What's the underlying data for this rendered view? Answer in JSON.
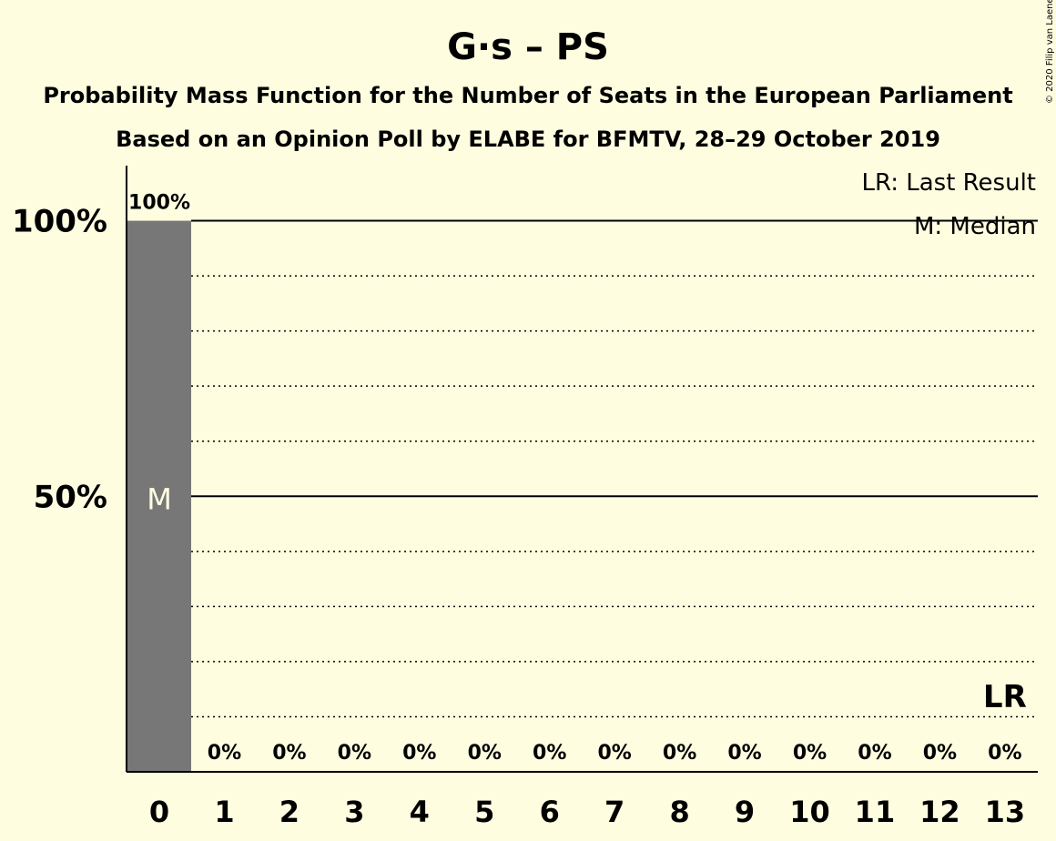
{
  "chart_data": {
    "type": "bar",
    "title": "G·s – PS",
    "subtitle": "Probability Mass Function for the Number of Seats in the European Parliament",
    "subtitle2": "Based on an Opinion Poll by ELABE for BFMTV, 28–29 October 2019",
    "copyright": "© 2020 Filip van Laenen",
    "categories": [
      "0",
      "1",
      "2",
      "3",
      "4",
      "5",
      "6",
      "7",
      "8",
      "9",
      "10",
      "11",
      "12",
      "13"
    ],
    "values": [
      100,
      0,
      0,
      0,
      0,
      0,
      0,
      0,
      0,
      0,
      0,
      0,
      0,
      0
    ],
    "value_labels": [
      "100%",
      "0%",
      "0%",
      "0%",
      "0%",
      "0%",
      "0%",
      "0%",
      "0%",
      "0%",
      "0%",
      "0%",
      "0%",
      "0%"
    ],
    "ylim": [
      0,
      110
    ],
    "y_ticks": [
      {
        "value": 100,
        "label": "100%"
      },
      {
        "value": 50,
        "label": "50%"
      }
    ],
    "y_dotted_grid": [
      10,
      20,
      30,
      40,
      60,
      70,
      80,
      90
    ],
    "median_seat": 0,
    "median_mark": "M",
    "last_result_seat": 13,
    "last_result_mark": "LR",
    "legend": {
      "placement": "top-right",
      "entries": [
        "LR: Last Result",
        "M: Median"
      ]
    },
    "colors": {
      "background": "#FFFDE0",
      "bar": "#777777",
      "axis": "#000000"
    }
  }
}
